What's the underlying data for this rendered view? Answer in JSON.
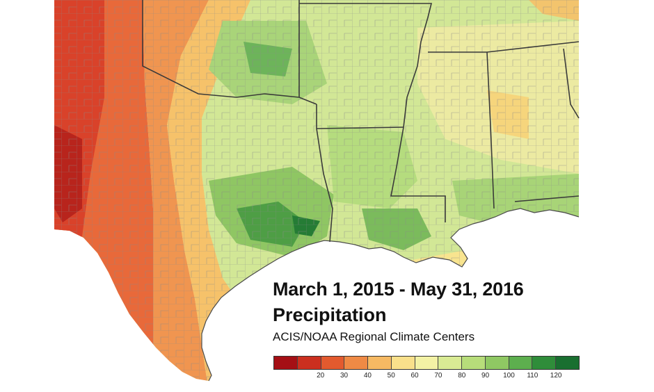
{
  "map": {
    "title": "March 1, 2015 - May 31, 2016",
    "subtitle": "Precipitation",
    "credit": "ACIS/NOAA Regional Climate Centers",
    "region": "South-central United States (Texas, Oklahoma, Arkansas, Louisiana, Mississippi, Alabama)"
  },
  "legend": {
    "colors": [
      "#a50f15",
      "#cb2f1f",
      "#e35a2e",
      "#ef8a45",
      "#f6b963",
      "#f9e08b",
      "#f3f2a5",
      "#d9eb94",
      "#b7dd7a",
      "#8fc863",
      "#5daf4e",
      "#2f8d3a",
      "#196f30"
    ],
    "tick_labels": [
      "20",
      "30",
      "40",
      "50",
      "60",
      "70",
      "80",
      "90",
      "100",
      "110",
      "120"
    ]
  },
  "palette": {
    "ocean": "#ffffff",
    "county_lines": "#8a8a8a",
    "state_lines": "#3a3a3a"
  }
}
